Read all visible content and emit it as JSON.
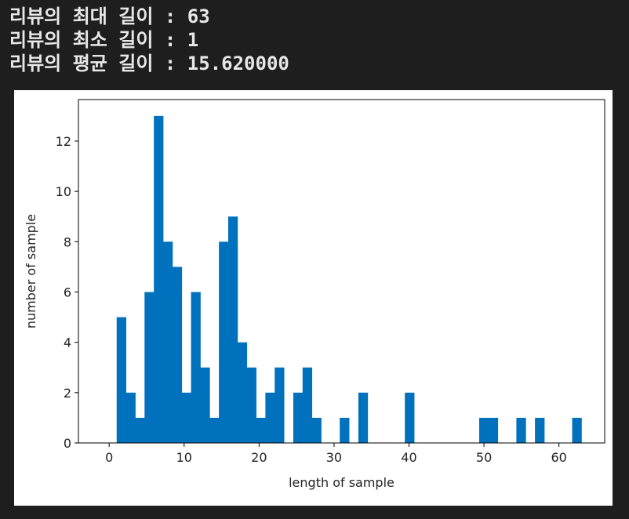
{
  "console": {
    "lines": [
      "리뷰의 최대 길이 : 63",
      "리뷰의 최소 길이 : 1",
      "리뷰의 평균 길이 : 15.620000"
    ]
  },
  "chart_data": {
    "type": "bar",
    "xlabel": "length of sample",
    "ylabel": "number of sample",
    "xlim": [
      -4.1,
      66.1
    ],
    "ylim": [
      0,
      13.65
    ],
    "bar_color": "#0072bd",
    "x_ticks": [
      0,
      10,
      20,
      30,
      40,
      50,
      60
    ],
    "y_ticks": [
      0,
      2,
      4,
      6,
      8,
      10,
      12
    ],
    "bin_edges": [
      1,
      2.24,
      3.48,
      4.72,
      5.96,
      7.2,
      8.44,
      9.68,
      10.92,
      12.16,
      13.4,
      14.64,
      15.88,
      17.12,
      18.36,
      19.6,
      20.84,
      22.08,
      23.32,
      24.56,
      25.8,
      27.04,
      28.28,
      29.52,
      30.76,
      32,
      33.24,
      34.48,
      35.72,
      36.96,
      38.2,
      39.44,
      40.68,
      41.92,
      43.16,
      44.4,
      45.64,
      46.88,
      48.12,
      49.36,
      50.6,
      51.84,
      53.08,
      54.32,
      55.56,
      56.8,
      58.04,
      59.28,
      60.52,
      61.76,
      63
    ],
    "counts": [
      5,
      2,
      1,
      6,
      13,
      8,
      7,
      2,
      6,
      3,
      1,
      8,
      9,
      4,
      3,
      1,
      2,
      3,
      0,
      2,
      3,
      1,
      0,
      0,
      1,
      0,
      2,
      0,
      0,
      0,
      0,
      2,
      0,
      0,
      0,
      0,
      0,
      0,
      0,
      1,
      1,
      0,
      0,
      1,
      0,
      1,
      0,
      0,
      0,
      1
    ]
  }
}
